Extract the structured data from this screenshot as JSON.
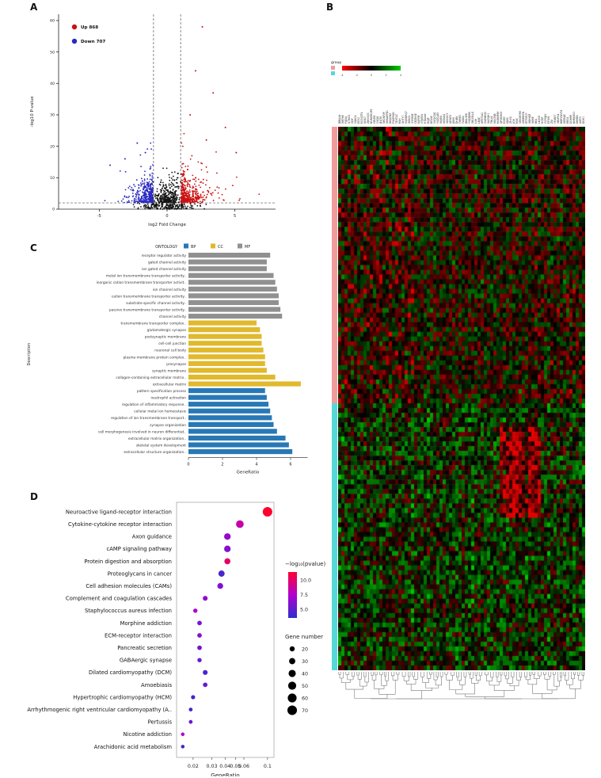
{
  "panel_labels": {
    "a": "A",
    "b": "B",
    "c": "C",
    "d": "D"
  },
  "chart_data": [
    {
      "id": "volcano",
      "panel": "A",
      "type": "scatter",
      "title": "",
      "xlabel": "log2 Fold Change",
      "ylabel": "-log10 P-value",
      "xlim": [
        -8,
        8
      ],
      "xticks": [
        -5,
        0,
        5
      ],
      "ylim": [
        0,
        62
      ],
      "yticks": [
        0,
        10,
        20,
        30,
        40,
        50,
        60
      ],
      "vlines": [
        -1,
        1
      ],
      "hline": 2,
      "legend": [
        {
          "label": "Up 868",
          "color": "#cc1111"
        },
        {
          "label": "Down 707",
          "color": "#2929c0"
        }
      ],
      "colors": {
        "up": "#cc1111",
        "down": "#2929c0",
        "ns": "#141414"
      },
      "counts": {
        "up": 868,
        "down": 707
      },
      "sim": {
        "seed": 11,
        "ns": 520,
        "up": 420,
        "down": 380,
        "outliers_up": [
          [
            2.6,
            58
          ],
          [
            2.1,
            44
          ],
          [
            3.4,
            37
          ],
          [
            1.7,
            30
          ],
          [
            4.3,
            26
          ],
          [
            2.9,
            22
          ],
          [
            5.1,
            18
          ]
        ],
        "outliers_down": [
          [
            -2.2,
            21
          ],
          [
            -1.6,
            18
          ],
          [
            -3.1,
            16
          ],
          [
            -4.2,
            14
          ]
        ]
      }
    },
    {
      "id": "heatmap",
      "panel": "B",
      "type": "heatmap",
      "rows": 114,
      "cols": 78,
      "seed": 7,
      "row_groups": [
        {
          "color": "#f19c9c",
          "rows": 58
        },
        {
          "color": "#57d8d8",
          "rows": 56
        }
      ],
      "palette": {
        "negative": "#ff0000",
        "zero": "#000000",
        "positive": "#00cc00"
      },
      "legend_title": "group",
      "scale_ticks": [
        "-4",
        "-2",
        "0",
        "2",
        "4"
      ],
      "column_labels": {
        "count": 78,
        "seed": 13
      }
    },
    {
      "id": "go",
      "panel": "C",
      "type": "bar",
      "orientation": "horizontal",
      "xlabel": "GeneRatio",
      "ylabel": "Description",
      "xticks": [
        0,
        2,
        4,
        6
      ],
      "xlim": [
        0,
        7
      ],
      "legend_title": "ONTOLOGY",
      "groups": [
        {
          "name": "BP",
          "color": "#2878b5"
        },
        {
          "name": "CC",
          "color": "#e0b92c"
        },
        {
          "name": "MF",
          "color": "#909090"
        }
      ],
      "bars": [
        {
          "label": "receptor regulator activity",
          "value": 4.8,
          "group": "MF"
        },
        {
          "label": "gated channel activity",
          "value": 4.6,
          "group": "MF"
        },
        {
          "label": "ion gated channel activity",
          "value": 4.6,
          "group": "MF"
        },
        {
          "label": "metal ion transmembrane transporter activity..",
          "value": 5.0,
          "group": "MF"
        },
        {
          "label": "inorganic cation transmembrane transporter activit..",
          "value": 5.1,
          "group": "MF"
        },
        {
          "label": "ion channel activity",
          "value": 5.2,
          "group": "MF"
        },
        {
          "label": "cation transmembrane transporter activity..",
          "value": 5.3,
          "group": "MF"
        },
        {
          "label": "substrate-specific channel activity..",
          "value": 5.3,
          "group": "MF"
        },
        {
          "label": "passive transmembrane transporter activity..",
          "value": 5.4,
          "group": "MF"
        },
        {
          "label": "channel activity",
          "value": 5.5,
          "group": "MF"
        },
        {
          "label": "transmembrane transporter complex..",
          "value": 4.0,
          "group": "CC"
        },
        {
          "label": "glutamatergic synapse",
          "value": 4.2,
          "group": "CC"
        },
        {
          "label": "postsynaptic membrane",
          "value": 4.3,
          "group": "CC"
        },
        {
          "label": "cell-cell junction",
          "value": 4.3,
          "group": "CC"
        },
        {
          "label": "neuronal cell body",
          "value": 4.4,
          "group": "CC"
        },
        {
          "label": "plasma membrane protein complex..",
          "value": 4.5,
          "group": "CC"
        },
        {
          "label": "presynapse",
          "value": 4.5,
          "group": "CC"
        },
        {
          "label": "synaptic membrane",
          "value": 4.6,
          "group": "CC"
        },
        {
          "label": "collagen-containing extracellular matrix..",
          "value": 5.1,
          "group": "CC"
        },
        {
          "label": "extracellular matrix",
          "value": 6.6,
          "group": "CC"
        },
        {
          "label": "pattern specification process",
          "value": 4.5,
          "group": "BP"
        },
        {
          "label": "neutrophil activation",
          "value": 4.6,
          "group": "BP"
        },
        {
          "label": "regulation of inflammatory response..",
          "value": 4.7,
          "group": "BP"
        },
        {
          "label": "cellular metal ion homeostasis",
          "value": 4.8,
          "group": "BP"
        },
        {
          "label": "regulation of ion transmembrane transport..",
          "value": 4.9,
          "group": "BP"
        },
        {
          "label": "synapse organization",
          "value": 5.0,
          "group": "BP"
        },
        {
          "label": "cell morphogenesis involved in neuron differentiat..",
          "value": 5.2,
          "group": "BP"
        },
        {
          "label": "extracellular matrix organization..",
          "value": 5.7,
          "group": "BP"
        },
        {
          "label": "skeletal system development",
          "value": 5.9,
          "group": "BP"
        },
        {
          "label": "extracellular structure organization..",
          "value": 6.1,
          "group": "BP"
        }
      ]
    },
    {
      "id": "kegg",
      "panel": "D",
      "type": "scatter",
      "xlabel": "GeneRatio",
      "xscale": "log",
      "xlim": [
        0.014,
        0.115
      ],
      "xticks": [
        0.02,
        0.03,
        0.04,
        0.05,
        0.06,
        0.1
      ],
      "color_legend": {
        "title": "−log₁₀(pvalue)",
        "ticks": [
          "10.0",
          "7.5",
          "5.0"
        ],
        "stops": [
          "#ff0030",
          "#b000d0",
          "#2e2ecc"
        ]
      },
      "size_legend": {
        "title": "Gene number",
        "values": [
          20,
          30,
          40,
          50,
          60,
          70
        ]
      },
      "points": [
        {
          "label": "Neuroactive ligand-receptor interaction",
          "x": 0.1,
          "gene_number": 70,
          "neglog10p": 12.0
        },
        {
          "label": "Cytokine-cytokine receptor interaction",
          "x": 0.055,
          "gene_number": 45,
          "neglog10p": 8.5
        },
        {
          "label": "Axon guidance",
          "x": 0.042,
          "gene_number": 33,
          "neglog10p": 6.5
        },
        {
          "label": "cAMP signaling pathway",
          "x": 0.042,
          "gene_number": 33,
          "neglog10p": 6.0
        },
        {
          "label": "Protein digestion and absorption",
          "x": 0.042,
          "gene_number": 28,
          "neglog10p": 10.5
        },
        {
          "label": "Proteoglycans in cancer",
          "x": 0.037,
          "gene_number": 30,
          "neglog10p": 4.0
        },
        {
          "label": "Cell adhesion molecules (CAMs)",
          "x": 0.036,
          "gene_number": 26,
          "neglog10p": 6.0
        },
        {
          "label": "Complement and coagulation cascades",
          "x": 0.026,
          "gene_number": 18,
          "neglog10p": 6.5
        },
        {
          "label": "Staphylococcus aureus infection",
          "x": 0.021,
          "gene_number": 14,
          "neglog10p": 7.5
        },
        {
          "label": "Morphine addiction",
          "x": 0.023,
          "gene_number": 16,
          "neglog10p": 5.5
        },
        {
          "label": "ECM-receptor interaction",
          "x": 0.023,
          "gene_number": 16,
          "neglog10p": 6.0
        },
        {
          "label": "Pancreatic secretion",
          "x": 0.023,
          "gene_number": 16,
          "neglog10p": 5.5
        },
        {
          "label": "GABAergic synapse",
          "x": 0.023,
          "gene_number": 14,
          "neglog10p": 5.0
        },
        {
          "label": "Dilated cardiomyopathy (DCM)",
          "x": 0.026,
          "gene_number": 18,
          "neglog10p": 4.0
        },
        {
          "label": "Amoebiasis",
          "x": 0.026,
          "gene_number": 16,
          "neglog10p": 5.0
        },
        {
          "label": "Hypertrophic cardiomyopathy (HCM)",
          "x": 0.02,
          "gene_number": 13,
          "neglog10p": 3.5
        },
        {
          "label": "Arrhythmogenic right ventricular cardiomyopathy (A..",
          "x": 0.019,
          "gene_number": 11,
          "neglog10p": 3.5
        },
        {
          "label": "Pertussis",
          "x": 0.019,
          "gene_number": 11,
          "neglog10p": 5.0
        },
        {
          "label": "Nicotine addiction",
          "x": 0.016,
          "gene_number": 10,
          "neglog10p": 7.5
        },
        {
          "label": "Arachidonic acid metabolism",
          "x": 0.016,
          "gene_number": 10,
          "neglog10p": 3.5
        }
      ]
    }
  ]
}
